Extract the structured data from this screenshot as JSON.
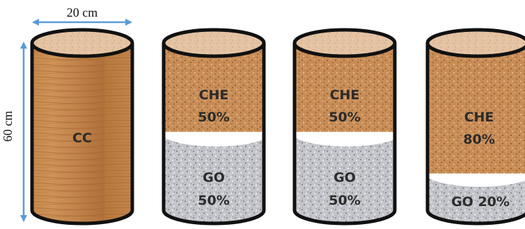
{
  "dimensions": {
    "width_label": "20 cm",
    "height_label": "60 cm"
  },
  "columns": [
    {
      "id": "col1",
      "material": "wood",
      "label": "CC"
    },
    {
      "id": "col2",
      "top_label_1": "CHE",
      "top_label_2": "50%",
      "bottom_label_1": "GO",
      "bottom_label_2": "50%",
      "top_fraction": 0.5
    },
    {
      "id": "col3",
      "top_label_1": "CHE",
      "top_label_2": "50%",
      "bottom_label_1": "GO",
      "bottom_label_2": "50%",
      "top_fraction": 0.5
    },
    {
      "id": "col4",
      "top_label_1": "CHE",
      "top_label_2": "80%",
      "bottom_label": "GO 20%",
      "top_fraction": 0.8
    }
  ],
  "colors": {
    "arrow": "#5b9bd5",
    "outline": "#111111",
    "wood": "#c98a4e",
    "che": "#c98e58",
    "go": "#c5c7cb"
  }
}
